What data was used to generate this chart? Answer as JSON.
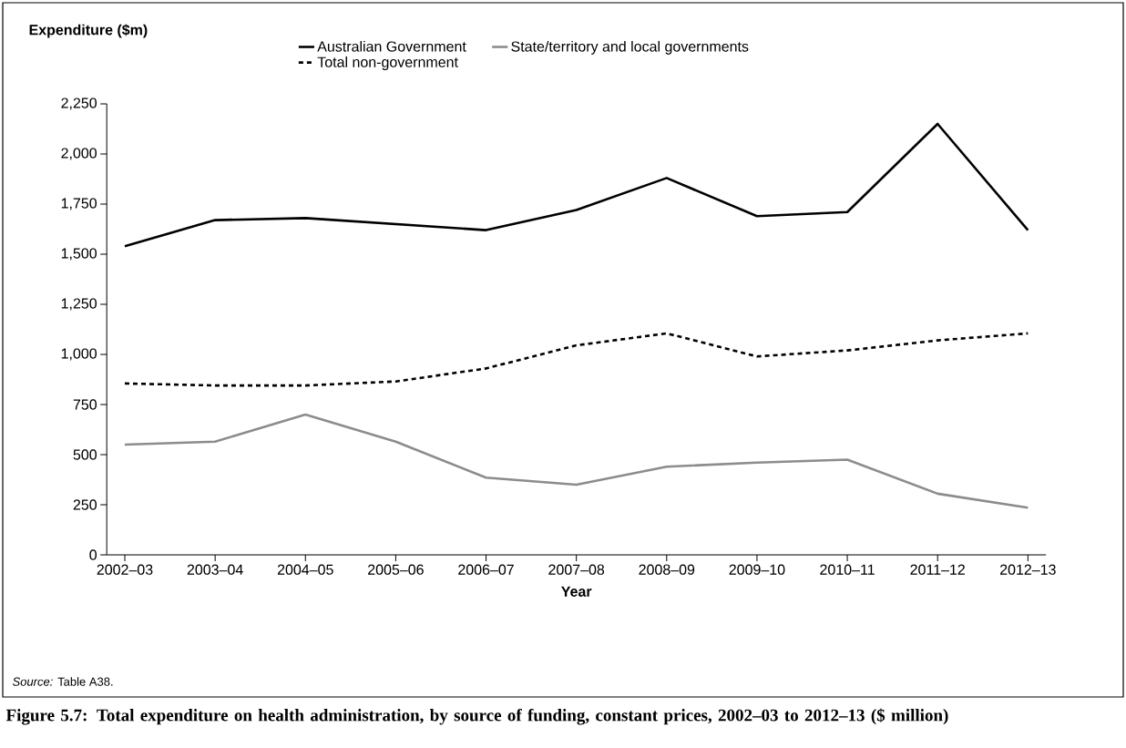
{
  "chart_data": {
    "type": "line",
    "ylabel": "Expenditure ($m)",
    "xlabel": "Year",
    "title": "Figure 5.7: Total expenditure on health administration, by source of funding, constant prices, 2002–03 to 2012–13 ($ million)",
    "annotations": [
      "*Source:* Table A38."
    ],
    "categories": [
      "2002–03",
      "2003–04",
      "2004–05",
      "2005–06",
      "2006–07",
      "2007–08",
      "2008–09",
      "2009–10",
      "2010–11",
      "2011–12",
      "2012–13"
    ],
    "series": [
      {
        "name": "Australian Government",
        "color": "#000000",
        "line_style": "solid",
        "values": [
          1540,
          1670,
          1680,
          1650,
          1620,
          1720,
          1880,
          1690,
          1710,
          2150,
          1620
        ]
      },
      {
        "name": "State/territory and local governments",
        "color": "#8c8c8c",
        "line_style": "solid",
        "values": [
          550,
          565,
          700,
          565,
          385,
          350,
          440,
          460,
          475,
          305,
          235
        ]
      },
      {
        "name": "Total non-government",
        "color": "#000000",
        "line_style": "dotted",
        "values": [
          855,
          845,
          845,
          865,
          930,
          1045,
          1105,
          990,
          1020,
          1070,
          1105
        ]
      }
    ],
    "ylim": [
      0,
      2250
    ],
    "yticks": [
      0,
      250,
      500,
      750,
      {
        "value": 1000,
        "label": "1,000"
      },
      {
        "value": 1250,
        "label": "1,250"
      },
      {
        "value": 1500,
        "label": "1,500"
      },
      {
        "value": 1750,
        "label": "1,750"
      },
      {
        "value": 2000,
        "label": "2,000"
      },
      {
        "value": 2250,
        "label": "2,250"
      }
    ],
    "grid": false,
    "legend": "top",
    "marker": "none"
  }
}
